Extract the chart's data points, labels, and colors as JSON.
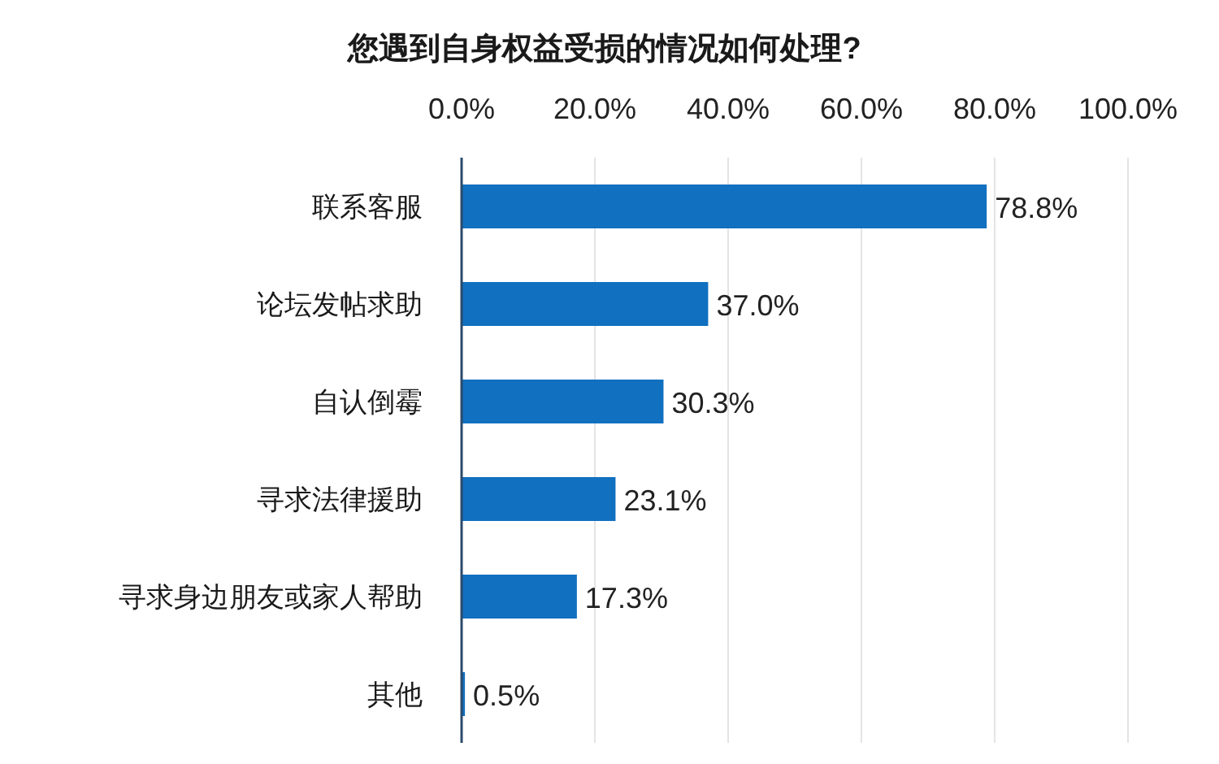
{
  "chart_data": {
    "type": "bar",
    "orientation": "horizontal",
    "title": "您遇到自身权益受损的情况如何处理?",
    "categories": [
      "联系客服",
      "论坛发帖求助",
      "自认倒霉",
      "寻求法律援助",
      "寻求身边朋友或家人帮助",
      "其他"
    ],
    "values": [
      78.8,
      37.0,
      30.3,
      23.1,
      17.3,
      0.5
    ],
    "value_labels": [
      "78.8%",
      "37.0%",
      "30.3%",
      "23.1%",
      "17.3%",
      "0.5%"
    ],
    "color": "#1170c0",
    "xlim": [
      0,
      100
    ],
    "xticks": [
      {
        "value": 0,
        "label": "0.0%"
      },
      {
        "value": 20,
        "label": "20.0%"
      },
      {
        "value": 40,
        "label": "40.0%"
      },
      {
        "value": 60,
        "label": "60.0%"
      },
      {
        "value": 80,
        "label": "80.0%"
      },
      {
        "value": 100,
        "label": "100.0%"
      }
    ],
    "grid": "x"
  }
}
